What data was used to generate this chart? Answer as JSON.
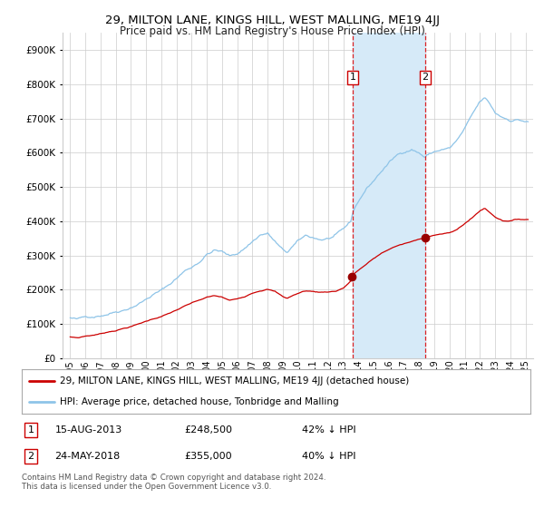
{
  "title": "29, MILTON LANE, KINGS HILL, WEST MALLING, ME19 4JJ",
  "subtitle": "Price paid vs. HM Land Registry's House Price Index (HPI)",
  "legend_line1": "29, MILTON LANE, KINGS HILL, WEST MALLING, ME19 4JJ (detached house)",
  "legend_line2": "HPI: Average price, detached house, Tonbridge and Malling",
  "transaction1_date": "15-AUG-2013",
  "transaction1_price": 248500,
  "transaction1_hpi": "42% ↓ HPI",
  "transaction2_date": "24-MAY-2018",
  "transaction2_price": 355000,
  "transaction2_hpi": "40% ↓ HPI",
  "transaction1_x": 2013.62,
  "transaction2_x": 2018.39,
  "footer": "Contains HM Land Registry data © Crown copyright and database right 2024.\nThis data is licensed under the Open Government Licence v3.0.",
  "hpi_color": "#8ec4e8",
  "price_color": "#cc0000",
  "point_color": "#990000",
  "background_color": "#ffffff",
  "plot_bg_color": "#ffffff",
  "shade_color": "#d6eaf8",
  "grid_color": "#cccccc",
  "ylim": [
    0,
    950000
  ],
  "yticks": [
    0,
    100000,
    200000,
    300000,
    400000,
    500000,
    600000,
    700000,
    800000,
    900000
  ],
  "xlim": [
    1994.5,
    2025.5
  ],
  "hpi_anchors": [
    [
      1995.0,
      118000
    ],
    [
      1995.5,
      112000
    ],
    [
      1996.0,
      118000
    ],
    [
      1996.5,
      122000
    ],
    [
      1997.0,
      128000
    ],
    [
      1997.5,
      135000
    ],
    [
      1998.0,
      143000
    ],
    [
      1998.5,
      150000
    ],
    [
      1999.0,
      160000
    ],
    [
      1999.5,
      172000
    ],
    [
      2000.0,
      185000
    ],
    [
      2000.5,
      200000
    ],
    [
      2001.0,
      210000
    ],
    [
      2001.5,
      225000
    ],
    [
      2002.0,
      245000
    ],
    [
      2002.5,
      265000
    ],
    [
      2003.0,
      278000
    ],
    [
      2003.5,
      295000
    ],
    [
      2004.0,
      318000
    ],
    [
      2004.5,
      330000
    ],
    [
      2005.0,
      325000
    ],
    [
      2005.5,
      310000
    ],
    [
      2006.0,
      318000
    ],
    [
      2006.5,
      335000
    ],
    [
      2007.0,
      355000
    ],
    [
      2007.5,
      375000
    ],
    [
      2008.0,
      380000
    ],
    [
      2008.5,
      355000
    ],
    [
      2009.0,
      328000
    ],
    [
      2009.3,
      320000
    ],
    [
      2009.6,
      335000
    ],
    [
      2010.0,
      350000
    ],
    [
      2010.5,
      365000
    ],
    [
      2011.0,
      360000
    ],
    [
      2011.5,
      355000
    ],
    [
      2012.0,
      358000
    ],
    [
      2012.5,
      365000
    ],
    [
      2013.0,
      378000
    ],
    [
      2013.5,
      400000
    ],
    [
      2013.62,
      428000
    ],
    [
      2014.0,
      460000
    ],
    [
      2014.5,
      495000
    ],
    [
      2015.0,
      520000
    ],
    [
      2015.5,
      548000
    ],
    [
      2016.0,
      572000
    ],
    [
      2016.5,
      592000
    ],
    [
      2017.0,
      605000
    ],
    [
      2017.5,
      615000
    ],
    [
      2018.0,
      605000
    ],
    [
      2018.39,
      592000
    ],
    [
      2018.5,
      598000
    ],
    [
      2019.0,
      608000
    ],
    [
      2019.5,
      615000
    ],
    [
      2020.0,
      618000
    ],
    [
      2020.5,
      640000
    ],
    [
      2021.0,
      672000
    ],
    [
      2021.5,
      710000
    ],
    [
      2022.0,
      745000
    ],
    [
      2022.3,
      755000
    ],
    [
      2022.6,
      740000
    ],
    [
      2023.0,
      710000
    ],
    [
      2023.5,
      698000
    ],
    [
      2024.0,
      692000
    ],
    [
      2024.5,
      695000
    ],
    [
      2025.2,
      688000
    ]
  ],
  "prop_anchors": [
    [
      1995.0,
      62000
    ],
    [
      1995.5,
      60000
    ],
    [
      1996.0,
      65000
    ],
    [
      1996.5,
      68000
    ],
    [
      1997.0,
      72000
    ],
    [
      1997.5,
      78000
    ],
    [
      1998.0,
      83000
    ],
    [
      1998.5,
      89000
    ],
    [
      1999.0,
      95000
    ],
    [
      1999.5,
      102000
    ],
    [
      2000.0,
      110000
    ],
    [
      2000.5,
      118000
    ],
    [
      2001.0,
      125000
    ],
    [
      2001.5,
      133000
    ],
    [
      2002.0,
      143000
    ],
    [
      2002.5,
      153000
    ],
    [
      2003.0,
      162000
    ],
    [
      2003.5,
      170000
    ],
    [
      2004.0,
      178000
    ],
    [
      2004.5,
      182000
    ],
    [
      2005.0,
      178000
    ],
    [
      2005.5,
      168000
    ],
    [
      2006.0,
      172000
    ],
    [
      2006.5,
      180000
    ],
    [
      2007.0,
      192000
    ],
    [
      2007.5,
      200000
    ],
    [
      2008.0,
      205000
    ],
    [
      2008.5,
      198000
    ],
    [
      2009.0,
      183000
    ],
    [
      2009.3,
      178000
    ],
    [
      2009.6,
      185000
    ],
    [
      2010.0,
      192000
    ],
    [
      2010.5,
      200000
    ],
    [
      2011.0,
      198000
    ],
    [
      2011.5,
      196000
    ],
    [
      2012.0,
      198000
    ],
    [
      2012.5,
      200000
    ],
    [
      2013.0,
      210000
    ],
    [
      2013.5,
      230000
    ],
    [
      2013.62,
      248500
    ],
    [
      2014.0,
      262000
    ],
    [
      2014.5,
      278000
    ],
    [
      2015.0,
      295000
    ],
    [
      2015.5,
      310000
    ],
    [
      2016.0,
      322000
    ],
    [
      2016.5,
      332000
    ],
    [
      2017.0,
      338000
    ],
    [
      2017.5,
      344000
    ],
    [
      2018.0,
      350000
    ],
    [
      2018.39,
      355000
    ],
    [
      2018.5,
      358000
    ],
    [
      2019.0,
      365000
    ],
    [
      2019.5,
      368000
    ],
    [
      2020.0,
      370000
    ],
    [
      2020.5,
      380000
    ],
    [
      2021.0,
      398000
    ],
    [
      2021.5,
      415000
    ],
    [
      2022.0,
      435000
    ],
    [
      2022.3,
      443000
    ],
    [
      2022.6,
      432000
    ],
    [
      2023.0,
      418000
    ],
    [
      2023.5,
      408000
    ],
    [
      2024.0,
      408000
    ],
    [
      2024.5,
      412000
    ],
    [
      2025.2,
      412000
    ]
  ]
}
